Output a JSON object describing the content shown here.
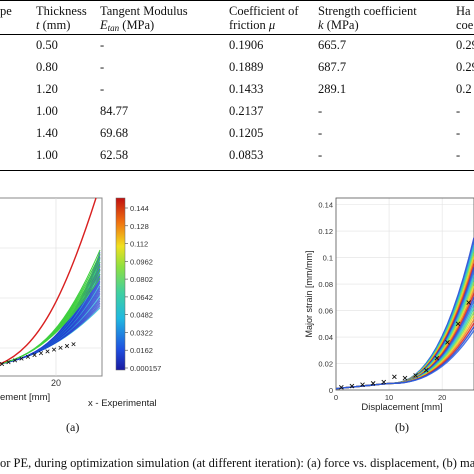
{
  "table": {
    "headers": {
      "col0": "pe",
      "col1_line1": "Thickness",
      "col1_line2_var": "t",
      "col1_line2_unit": " (mm)",
      "col2_line1": "Tangent Modulus",
      "col2_line2_var": "E",
      "col2_line2_sub": "tan",
      "col2_line2_unit": " (MPa)",
      "col3_line1": "Coefficient of",
      "col3_line2_text": "friction ",
      "col3_line2_var": "μ",
      "col4_line1": "Strength coefficient",
      "col4_line2_var": "k",
      "col4_line2_unit": " (MPa)",
      "col5_line1": "Ha",
      "col5_line2": "coe"
    },
    "rows": [
      {
        "thickness": "0.50",
        "tangent": "-",
        "friction": "0.1906",
        "strength": "665.7",
        "hard": "0.29"
      },
      {
        "thickness": "0.80",
        "tangent": "-",
        "friction": "0.1889",
        "strength": "687.7",
        "hard": "0.29"
      },
      {
        "thickness": "1.20",
        "tangent": "-",
        "friction": "0.1433",
        "strength": "289.1",
        "hard": "0.2"
      },
      {
        "thickness": "1.00",
        "tangent": "84.77",
        "friction": "0.2137",
        "strength": "-",
        "hard": "-"
      },
      {
        "thickness": "1.40",
        "tangent": "69.68",
        "friction": "0.1205",
        "strength": "-",
        "hard": "-"
      },
      {
        "thickness": "1.00",
        "tangent": "62.58",
        "friction": "0.0853",
        "strength": "-",
        "hard": "-"
      }
    ]
  },
  "figure_a": {
    "x_tick": "20",
    "xlabel": "ement [mm]",
    "legend_experimental": "x - Experimental",
    "label": "(a)",
    "colorbar_ticks": [
      "0.144",
      "0.128",
      "0.112",
      "0.0962",
      "0.0802",
      "0.0642",
      "0.0482",
      "0.0322",
      "0.0162",
      "0.000157"
    ],
    "colors": {
      "red": "#d92020",
      "green": "#3fcf3f",
      "blue": "#1f3fd0",
      "cyan": "#20c0d8"
    }
  },
  "figure_b": {
    "ylabel": "Major strain [mm/mm]",
    "xlabel": "Displacement [mm]",
    "x_ticks": [
      "0",
      "10",
      "20"
    ],
    "y_ticks": [
      "0",
      "0.02",
      "0.04",
      "0.06",
      "0.08",
      "0.1",
      "0.12",
      "0.14"
    ],
    "label": "(b)"
  },
  "caption": "or PE, during optimization simulation (at different iteration): (a) force vs. displacement, (b) majo"
}
